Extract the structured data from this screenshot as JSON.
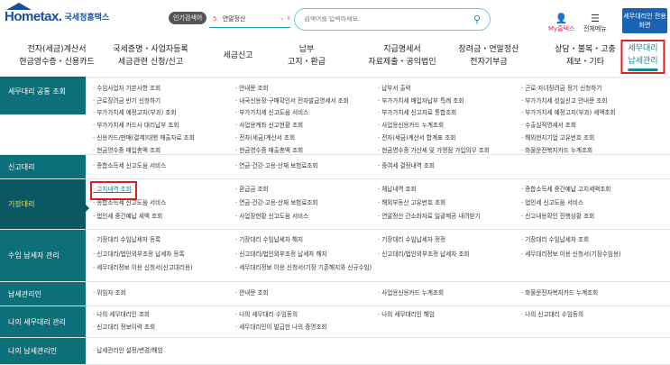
{
  "header": {
    "logo_text": "Hometax.",
    "logo_org": "국세청홈택스",
    "popular_label": "인기검색어",
    "popular_rank": "5.",
    "popular_term": "연말정산",
    "search_placeholder": "검색어를 입력하세요.",
    "my_hometax": "My홈택스",
    "all_menu": "전체메뉴",
    "agent_button": "세무대리인 전용화면"
  },
  "nav": [
    {
      "l1": "전자(세금)계산서",
      "l2": "현금영수증・신용카드"
    },
    {
      "l1": "국세증명・사업자등록",
      "l2": "세금관련 신청/신고"
    },
    {
      "l1": "세금신고",
      "l2": ""
    },
    {
      "l1": "납부",
      "l2": "고지・환급"
    },
    {
      "l1": "지급명세서",
      "l2": "자료제출・공익법인"
    },
    {
      "l1": "장려금・연말정산",
      "l2": "전자기부금"
    },
    {
      "l1": "상담・불복・고충",
      "l2": "제보・기타"
    },
    {
      "l1": "세무대리",
      "l2": "납세관리",
      "active": true
    }
  ],
  "sections": [
    {
      "label": "세무대리 공통 조회",
      "items": [
        "수임사업자 기본사항 조회",
        "안내문 조회",
        "납부서 출력",
        "근로·자녀장려금 정기 신청하기",
        "근로장려금 반기 신청하기",
        "내국신용장·구매확인서 전자발급명세서 조회",
        "부가가치세 매입자납부 특례 조회",
        "부가가치세 성실신고 안내문 조회",
        "부가가치세 예정고지(부과) 조회",
        "부가가치세 신고도움 서비스",
        "부가가치세 신고자료 통합조회",
        "부가가치세 예정고지(부과) 세액조회",
        "부가가치세 카드사 대리납부 조회",
        "사업용계좌 신고현황 조회",
        "사업용신용카드 누계조회",
        "수출실적명세서 조회",
        "신용카드/판매(결제)대행 매출자료 조회",
        "전자(세금)계산서 조회",
        "전자(세금)계산서 합계표 조회",
        "해외현지기업 고유번호 조회",
        "현금영수증 매입총액 조회",
        "현금영수증 매출총액 조회",
        "현금영수증 가산세 및 가맹점 가입의무 조회",
        "화물운전복지카드 누계조회"
      ]
    },
    {
      "label": "신고대리",
      "items": [
        "종합소득세 신고도움 서비스",
        "연금·건강·고용·산재 보험료조회",
        "증여세 결정내역 조회",
        ""
      ]
    },
    {
      "label": "기장대리",
      "active": true,
      "items": [
        "고지내역 조회",
        "환급금 조회",
        "체납내역 조회",
        "종합소득세 중간예납 고지세액조회",
        "종합소득세 신고도움 서비스",
        "연금·건강·고용·산재 보험료조회",
        "해외부동산 고유번호 조회",
        "법인세 신고도움 서비스",
        "법인세 중간예납 세액 조회",
        "사업장현황 신고도움 서비스",
        "연말정산 간소화자료 일괄제공 내려받기",
        "신고내용확인 진행상황 조회"
      ]
    },
    {
      "label": "수임 납세자 관리",
      "items": [
        "기장대리 수임납세자 등록",
        "기장대리 수임납세자 해지",
        "기장대리 수임납세자 정정",
        "기장대리 수임납세자 조회",
        "신고대리/법인외부조정 납세자 등록",
        "신고대리/법인외부조정 납세자 해지",
        "신고대리/법인외부조정 납세자 조회",
        "세무대리정보 이용 신청서(기장수임용)",
        "세무대리정보 이용 신청서(신고대리용)",
        "세무대리정보 이용 신청서(기장 기존해지와 신규수임)",
        "",
        ""
      ]
    },
    {
      "label": "납세관리인",
      "items": [
        "위임자 조회",
        "안내문 조회",
        "사업용신용카드 누계조회",
        "화물운전자복지카드 누계조회"
      ]
    },
    {
      "label": "나의 세무대리 관리",
      "items": [
        "나의 세무대리인 조회",
        "나의 세무대리 수임동의",
        "나의 세무대리인 해임",
        "나의 신고대리 수임동의",
        "신고대리 정보이력 조회",
        "세무대리인이 발급한 나의 증명조회",
        "",
        ""
      ]
    },
    {
      "label": "나의 납세관리인",
      "items": [
        "납세관리인 설정/변경/해임",
        "",
        "",
        ""
      ]
    }
  ]
}
